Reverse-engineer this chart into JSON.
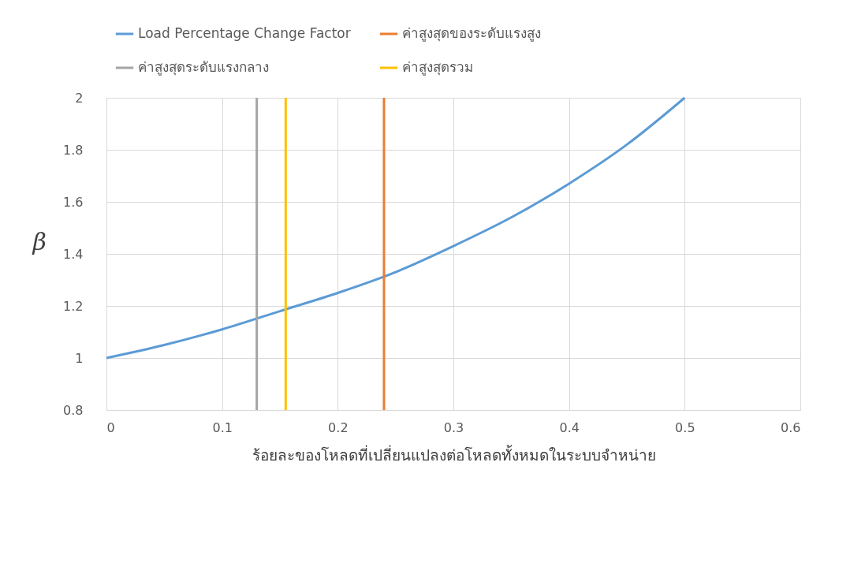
{
  "chart_data": {
    "type": "line",
    "xlabel": "ร้อยละของโหลดที่เปลี่ยนแปลงต่อโหลดทั้งหมดในระบบจำหน่าย",
    "ylabel": "β",
    "series": [
      {
        "name": "Load Percentage Change Factor",
        "color": "#5b9bd5",
        "x": [
          0,
          0.05,
          0.1,
          0.15,
          0.2,
          0.25,
          0.3,
          0.35,
          0.4,
          0.45,
          0.5
        ],
        "values": [
          1,
          1.05,
          1.11,
          1.18,
          1.25,
          1.33,
          1.43,
          1.54,
          1.67,
          1.82,
          2
        ]
      },
      {
        "name": "ค่าสูงสุดของระดับแรงสูง",
        "color": "#ed7d31",
        "x": [
          0.24,
          0.24
        ],
        "values": [
          0.8,
          2
        ]
      },
      {
        "name": "ค่าสูงสุดระดับแรงกลาง",
        "color": "#a5a5a5",
        "x": [
          0.13,
          0.13
        ],
        "values": [
          0.8,
          2
        ]
      },
      {
        "name": "ค่าสูงสุดรวม",
        "color": "#ffc000",
        "x": [
          0.155,
          0.155
        ],
        "values": [
          0.8,
          2
        ]
      }
    ],
    "xlim": [
      0,
      0.6
    ],
    "xticks": [
      0,
      0.1,
      0.2,
      0.3,
      0.4,
      0.5,
      0.6
    ],
    "ylim": [
      0.8,
      2
    ],
    "yticks": [
      0.8,
      1,
      1.2,
      1.4,
      1.6,
      1.8,
      2
    ],
    "grid": true,
    "legend": "top",
    "marker": "none",
    "line_style": "solid"
  }
}
